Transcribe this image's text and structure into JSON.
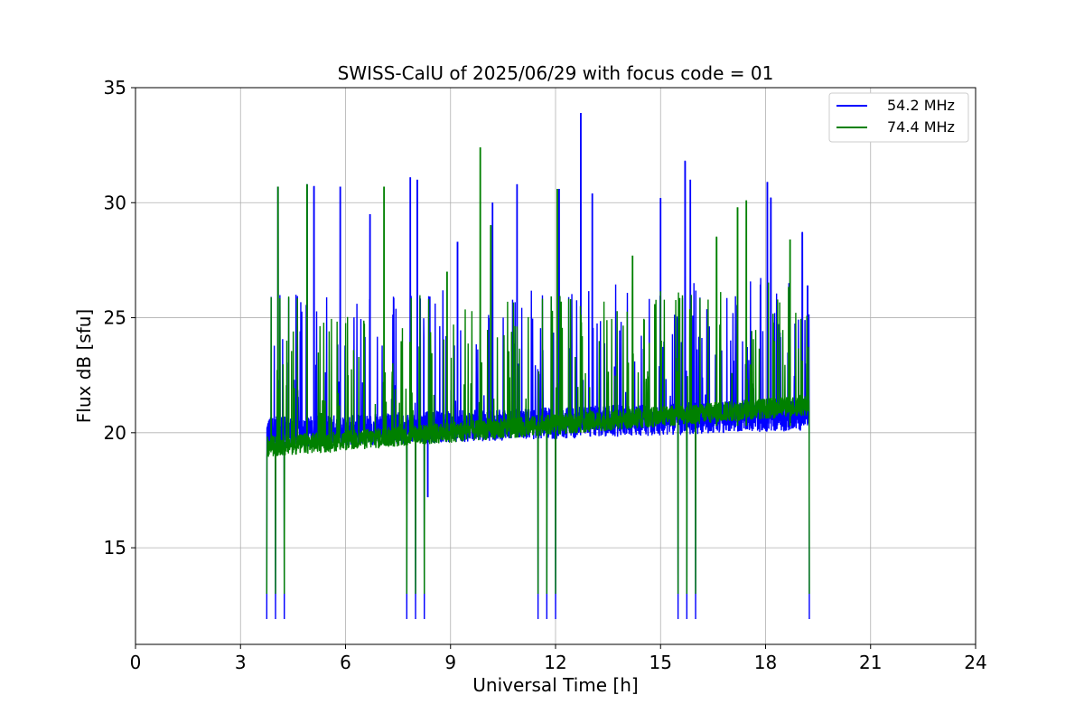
{
  "chart_data": {
    "type": "line",
    "title": "SWISS-CalU of 2025/06/29 with focus code = 01",
    "xlabel": "Universal Time [h]",
    "ylabel": "Flux dB [sfu]",
    "xlim": [
      0,
      24
    ],
    "ylim": [
      10.8,
      35
    ],
    "xticks": [
      0,
      3,
      6,
      9,
      12,
      15,
      18,
      21,
      24
    ],
    "yticks": [
      15,
      20,
      25,
      30,
      35
    ],
    "grid": true,
    "legend_position": "top-right",
    "data_start_h": 3.75,
    "data_end_h": 19.25,
    "series": [
      {
        "name": "54.2 MHz",
        "color": "#0000ff",
        "baseline_start": 20.0,
        "baseline_end": 20.8,
        "calibration_low": 11.9,
        "spikes": [
          {
            "x": 4.07,
            "y": 30.7
          },
          {
            "x": 4.9,
            "y": 30.8
          },
          {
            "x": 5.1,
            "y": 30.7
          },
          {
            "x": 5.85,
            "y": 30.7
          },
          {
            "x": 6.7,
            "y": 29.5
          },
          {
            "x": 7.85,
            "y": 31.1
          },
          {
            "x": 8.05,
            "y": 31.0
          },
          {
            "x": 9.2,
            "y": 28.3
          },
          {
            "x": 10.2,
            "y": 30.0
          },
          {
            "x": 10.9,
            "y": 30.8
          },
          {
            "x": 12.1,
            "y": 30.6
          },
          {
            "x": 12.72,
            "y": 33.9
          },
          {
            "x": 13.05,
            "y": 30.4
          },
          {
            "x": 15.0,
            "y": 30.2
          },
          {
            "x": 15.7,
            "y": 31.8
          },
          {
            "x": 15.85,
            "y": 31.0
          },
          {
            "x": 18.05,
            "y": 30.9
          },
          {
            "x": 18.15,
            "y": 30.2
          },
          {
            "x": 19.05,
            "y": 28.7
          },
          {
            "x": 19.2,
            "y": 26.4
          },
          {
            "x": 8.35,
            "y": 17.2
          }
        ]
      },
      {
        "name": "74.4 MHz",
        "color": "#008000",
        "baseline_start": 19.4,
        "baseline_end": 21.2,
        "calibration_low": 13.0,
        "spikes": [
          {
            "x": 4.07,
            "y": 30.7
          },
          {
            "x": 4.9,
            "y": 30.8
          },
          {
            "x": 7.1,
            "y": 30.7
          },
          {
            "x": 9.85,
            "y": 32.4
          },
          {
            "x": 12.05,
            "y": 30.6
          },
          {
            "x": 17.45,
            "y": 30.1
          },
          {
            "x": 8.9,
            "y": 27.0
          },
          {
            "x": 10.15,
            "y": 29.0
          },
          {
            "x": 14.2,
            "y": 27.7
          },
          {
            "x": 16.6,
            "y": 28.5
          },
          {
            "x": 17.2,
            "y": 29.8
          },
          {
            "x": 18.7,
            "y": 28.4
          }
        ]
      }
    ]
  }
}
